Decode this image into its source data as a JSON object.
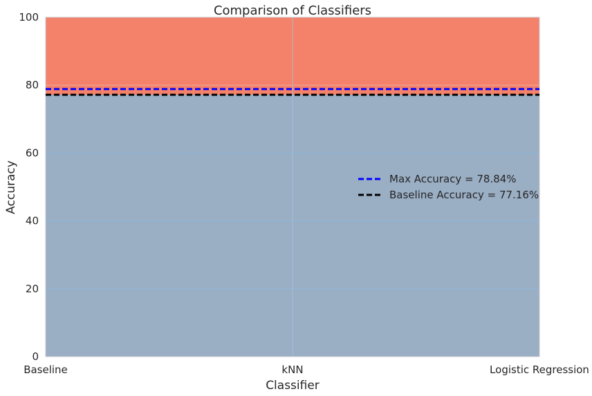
{
  "chart_data": {
    "type": "area",
    "title": "Comparison of Classifiers",
    "xlabel": "Classifier",
    "ylabel": "Accuracy",
    "categories": [
      "Baseline",
      "kNN",
      "Logistic Regression"
    ],
    "ylim": [
      0,
      100
    ],
    "yticks": [
      "0",
      "20",
      "40",
      "60",
      "80",
      "100"
    ],
    "grid": true,
    "series": [
      {
        "name": "",
        "values": [
          77.16,
          77.16,
          77.16
        ],
        "color": "#9aaec4"
      },
      {
        "name": "",
        "values": [
          100,
          100,
          100
        ],
        "color": "#f4826a",
        "stacked_top": true
      }
    ],
    "reference_lines": [
      {
        "label": "Max Accuracy = 78.84%",
        "value": 78.84,
        "color": "#0000ff",
        "style": "dashed"
      },
      {
        "label": "Baseline Accuracy = 77.16%",
        "value": 77.16,
        "color": "#000000",
        "style": "dashed"
      }
    ],
    "legend_position": "center-right"
  }
}
